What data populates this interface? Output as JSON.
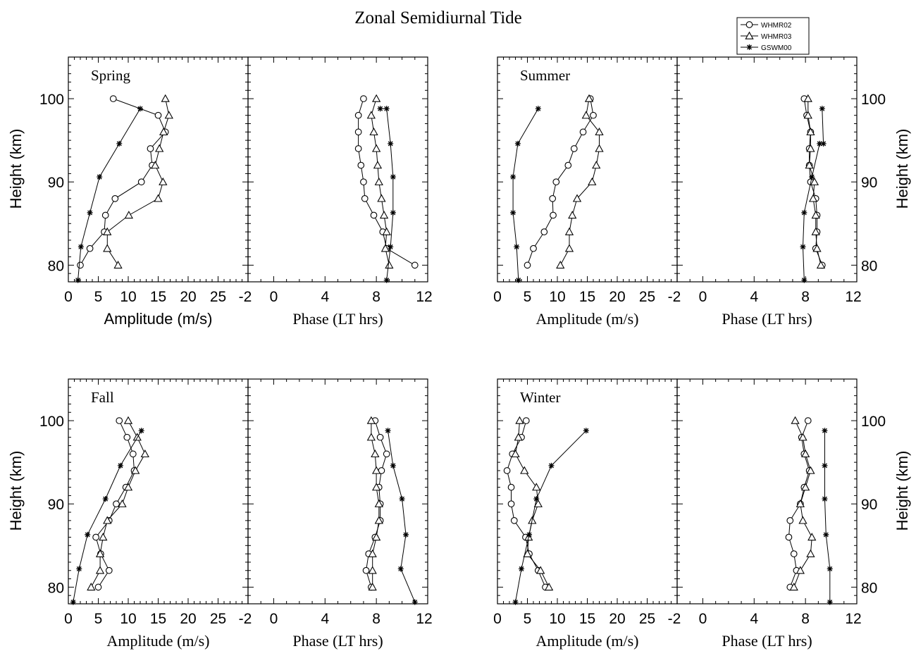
{
  "figure": {
    "title": "Zonal Semidiurnal Tide",
    "legend": {
      "placement": "top-right",
      "entries": [
        {
          "name": "WHMR02",
          "marker": "circle"
        },
        {
          "name": "WHMR03",
          "marker": "triangle"
        },
        {
          "name": "GSWM00",
          "marker": "star"
        }
      ]
    }
  },
  "chart_data": [
    {
      "type": "line",
      "season": "Spring",
      "variable": "amplitude",
      "xlabel": "Amplitude (m/s)",
      "ylabel": "Height (km)",
      "xlim": [
        0,
        30
      ],
      "ylim": [
        78,
        105
      ],
      "xticks": [
        0,
        5,
        10,
        15,
        20,
        25
      ],
      "xtick_labels": [
        "0",
        "5",
        "10",
        "15",
        "20",
        "25"
      ],
      "yticks": [
        80,
        90,
        100
      ],
      "ytick_labels": [
        "80",
        "90",
        "100"
      ],
      "series": [
        {
          "name": "WHMR02",
          "x": [
            2.0,
            3.6,
            6.0,
            6.2,
            7.8,
            12.2,
            14.0,
            13.7,
            16.2,
            15.0,
            7.5
          ],
          "y": [
            80,
            82,
            84,
            86,
            88,
            90,
            92,
            94,
            96,
            98,
            100
          ]
        },
        {
          "name": "WHMR03",
          "x": [
            8.3,
            6.5,
            6.5,
            10.1,
            15.0,
            15.8,
            14.5,
            15.2,
            15.9,
            16.8,
            16.2
          ],
          "y": [
            80,
            82,
            84,
            86,
            88,
            90,
            92,
            94,
            96,
            98,
            100
          ]
        },
        {
          "name": "GSWM00",
          "x": [
            1.6,
            2.1,
            3.6,
            5.2,
            8.5,
            12.0
          ],
          "y": [
            78.2,
            82.2,
            86.3,
            90.6,
            94.6,
            98.8
          ]
        }
      ]
    },
    {
      "type": "line",
      "season": "Spring",
      "variable": "phase",
      "xlabel": "Phase (LT hrs)",
      "xlim": [
        -2,
        12
      ],
      "ylim": [
        78,
        105
      ],
      "xticks": [
        -2,
        0,
        4,
        8,
        12
      ],
      "xtick_labels": [
        "-2",
        "0",
        "4",
        "8",
        "12"
      ],
      "series": [
        {
          "name": "WHMR02",
          "x": [
            11.0,
            8.8,
            8.5,
            7.8,
            7.1,
            7.0,
            6.8,
            6.6,
            6.6,
            6.6,
            7.0
          ],
          "y": [
            80,
            82,
            84,
            86,
            88,
            90,
            92,
            94,
            96,
            98,
            100
          ]
        },
        {
          "name": "WHMR03",
          "x": [
            9.0,
            8.7,
            8.8,
            8.6,
            8.4,
            8.2,
            8.1,
            8.0,
            7.8,
            7.6,
            8.0
          ],
          "y": [
            80,
            82,
            84,
            86,
            88,
            90,
            92,
            94,
            96,
            98,
            100
          ]
        },
        {
          "name": "GSWM00",
          "x": [
            8.8,
            9.1,
            9.3,
            9.3,
            9.1,
            8.8,
            8.3
          ],
          "y": [
            78.2,
            82.2,
            86.3,
            90.6,
            94.6,
            98.8,
            98.8
          ]
        }
      ]
    },
    {
      "type": "line",
      "season": "Summer",
      "variable": "amplitude",
      "xlabel": "Amplitude (m/s)",
      "xlim": [
        0,
        30
      ],
      "ylim": [
        78,
        105
      ],
      "xticks": [
        0,
        5,
        10,
        15,
        20,
        25
      ],
      "xtick_labels": [
        "0",
        "5",
        "10",
        "15",
        "20",
        "25"
      ],
      "series": [
        {
          "name": "WHMR02",
          "x": [
            5.0,
            6.0,
            7.8,
            9.3,
            9.2,
            9.8,
            11.8,
            12.8,
            14.3,
            16.0,
            15.5
          ],
          "y": [
            80,
            82,
            84,
            86,
            88,
            90,
            92,
            94,
            96,
            98,
            100
          ]
        },
        {
          "name": "WHMR03",
          "x": [
            10.5,
            12.0,
            12.0,
            12.5,
            13.3,
            15.8,
            16.5,
            17.0,
            17.0,
            14.8,
            15.3
          ],
          "y": [
            80,
            82,
            84,
            86,
            88,
            90,
            92,
            94,
            96,
            98,
            100
          ]
        },
        {
          "name": "GSWM00",
          "x": [
            3.5,
            3.2,
            2.6,
            2.6,
            3.4,
            6.8
          ],
          "y": [
            78.2,
            82.2,
            86.3,
            90.6,
            94.6,
            98.8
          ]
        }
      ]
    },
    {
      "type": "line",
      "season": "Summer",
      "variable": "phase",
      "xlabel": "Phase (LT hrs)",
      "ylabel": "Height (km)",
      "xlim": [
        -2,
        12
      ],
      "ylim": [
        78,
        105
      ],
      "xticks": [
        -2,
        0,
        4,
        8,
        12
      ],
      "xtick_labels": [
        "-2",
        "0",
        "4",
        "8",
        "12"
      ],
      "yticks": [
        80,
        90,
        100
      ],
      "ytick_labels": [
        "80",
        "90",
        "100"
      ],
      "series": [
        {
          "name": "WHMR02",
          "x": [
            9.3,
            8.8,
            8.9,
            8.9,
            8.8,
            8.4,
            8.3,
            8.3,
            8.4,
            8.1,
            7.9
          ],
          "y": [
            80,
            82,
            84,
            86,
            88,
            90,
            92,
            94,
            96,
            98,
            100
          ]
        },
        {
          "name": "WHMR03",
          "x": [
            9.2,
            8.9,
            8.8,
            8.8,
            8.6,
            8.7,
            8.3,
            8.4,
            8.4,
            8.2,
            8.2
          ],
          "y": [
            80,
            82,
            84,
            86,
            88,
            90,
            92,
            94,
            96,
            98,
            100
          ]
        },
        {
          "name": "GSWM00",
          "x": [
            7.9,
            7.8,
            7.9,
            8.5,
            9.1,
            9.4,
            9.3
          ],
          "y": [
            78.2,
            82.2,
            86.3,
            90.6,
            94.6,
            94.6,
            98.8
          ]
        }
      ]
    },
    {
      "type": "line",
      "season": "Fall",
      "variable": "amplitude",
      "xlabel": "Amplitude (m/s)",
      "ylabel": "Height (km)",
      "xlim": [
        0,
        30
      ],
      "ylim": [
        78,
        105
      ],
      "xticks": [
        0,
        5,
        10,
        15,
        20,
        25
      ],
      "xtick_labels": [
        "0",
        "5",
        "10",
        "15",
        "20",
        "25"
      ],
      "yticks": [
        80,
        90,
        100
      ],
      "ytick_labels": [
        "80",
        "90",
        "100"
      ],
      "series": [
        {
          "name": "WHMR02",
          "x": [
            5.0,
            6.8,
            5.4,
            4.6,
            6.8,
            8.0,
            9.6,
            11.0,
            10.8,
            9.8,
            8.5
          ],
          "y": [
            80,
            82,
            84,
            86,
            88,
            90,
            92,
            94,
            96,
            98,
            100
          ]
        },
        {
          "name": "WHMR03",
          "x": [
            3.8,
            5.3,
            5.3,
            5.8,
            6.5,
            9.0,
            10.0,
            11.2,
            12.8,
            11.5,
            10.0
          ],
          "y": [
            80,
            82,
            84,
            86,
            88,
            90,
            92,
            94,
            96,
            98,
            100
          ]
        },
        {
          "name": "GSWM00",
          "x": [
            0.8,
            1.8,
            3.2,
            6.2,
            8.7,
            12.2
          ],
          "y": [
            78.2,
            82.2,
            86.3,
            90.6,
            94.6,
            98.8
          ]
        }
      ]
    },
    {
      "type": "line",
      "season": "Fall",
      "variable": "phase",
      "xlabel": "Phase (LT hrs)",
      "xlim": [
        -2,
        12
      ],
      "ylim": [
        78,
        105
      ],
      "xticks": [
        -2,
        0,
        4,
        8,
        12
      ],
      "xtick_labels": [
        "-2",
        "0",
        "4",
        "8",
        "12"
      ],
      "series": [
        {
          "name": "WHMR02",
          "x": [
            7.6,
            7.2,
            7.4,
            7.9,
            8.3,
            8.3,
            8.2,
            8.4,
            8.8,
            8.3,
            7.9
          ],
          "y": [
            80,
            82,
            84,
            86,
            88,
            90,
            92,
            94,
            96,
            98,
            100
          ]
        },
        {
          "name": "WHMR03",
          "x": [
            7.7,
            7.7,
            7.7,
            8.0,
            8.2,
            8.2,
            8.0,
            8.0,
            7.9,
            7.6,
            7.6
          ],
          "y": [
            80,
            82,
            84,
            86,
            88,
            90,
            92,
            94,
            96,
            98,
            100
          ]
        },
        {
          "name": "GSWM00",
          "x": [
            11.0,
            9.9,
            10.3,
            10.0,
            9.3,
            8.9
          ],
          "y": [
            78.2,
            82.2,
            86.3,
            90.6,
            94.6,
            98.8
          ]
        }
      ]
    },
    {
      "type": "line",
      "season": "Winter",
      "variable": "amplitude",
      "xlabel": "Amplitude (m/s)",
      "xlim": [
        0,
        30
      ],
      "ylim": [
        78,
        105
      ],
      "xticks": [
        0,
        5,
        10,
        15,
        20,
        25
      ],
      "xtick_labels": [
        "0",
        "5",
        "10",
        "15",
        "20",
        "25"
      ],
      "series": [
        {
          "name": "WHMR02",
          "x": [
            8.0,
            6.8,
            5.3,
            4.7,
            2.8,
            2.3,
            2.3,
            1.6,
            2.5,
            4.0,
            4.8
          ],
          "y": [
            80,
            82,
            84,
            86,
            88,
            90,
            92,
            94,
            96,
            98,
            100
          ]
        },
        {
          "name": "WHMR03",
          "x": [
            8.6,
            7.2,
            5.0,
            5.2,
            5.8,
            6.8,
            6.5,
            4.5,
            3.0,
            3.5,
            3.7
          ],
          "y": [
            80,
            82,
            84,
            86,
            88,
            90,
            92,
            94,
            96,
            98,
            100
          ]
        },
        {
          "name": "GSWM00",
          "x": [
            3.0,
            4.0,
            5.3,
            6.5,
            9.0,
            14.8
          ],
          "y": [
            78.2,
            82.2,
            86.3,
            90.6,
            94.6,
            98.8
          ]
        }
      ]
    },
    {
      "type": "line",
      "season": "Winter",
      "variable": "phase",
      "xlabel": "Phase (LT hrs)",
      "ylabel": "Height (km)",
      "xlim": [
        -2,
        12
      ],
      "ylim": [
        78,
        105
      ],
      "xticks": [
        -2,
        0,
        4,
        8,
        12
      ],
      "xtick_labels": [
        "-2",
        "0",
        "4",
        "8",
        "12"
      ],
      "yticks": [
        80,
        90,
        100
      ],
      "ytick_labels": [
        "80",
        "90",
        "100"
      ],
      "series": [
        {
          "name": "WHMR02",
          "x": [
            6.8,
            7.3,
            7.1,
            6.7,
            6.8,
            7.6,
            7.9,
            8.3,
            7.9,
            7.7,
            8.2
          ],
          "y": [
            80,
            82,
            84,
            86,
            88,
            90,
            92,
            94,
            96,
            98,
            100
          ]
        },
        {
          "name": "WHMR03",
          "x": [
            7.1,
            7.6,
            8.4,
            8.5,
            7.8,
            7.6,
            8.0,
            8.4,
            8.0,
            7.8,
            7.2
          ],
          "y": [
            80,
            82,
            84,
            86,
            88,
            90,
            92,
            94,
            96,
            98,
            100
          ]
        },
        {
          "name": "GSWM00",
          "x": [
            9.9,
            9.9,
            9.6,
            9.5,
            9.5,
            9.5
          ],
          "y": [
            78.2,
            82.2,
            86.3,
            90.6,
            94.6,
            98.8
          ]
        }
      ]
    }
  ]
}
